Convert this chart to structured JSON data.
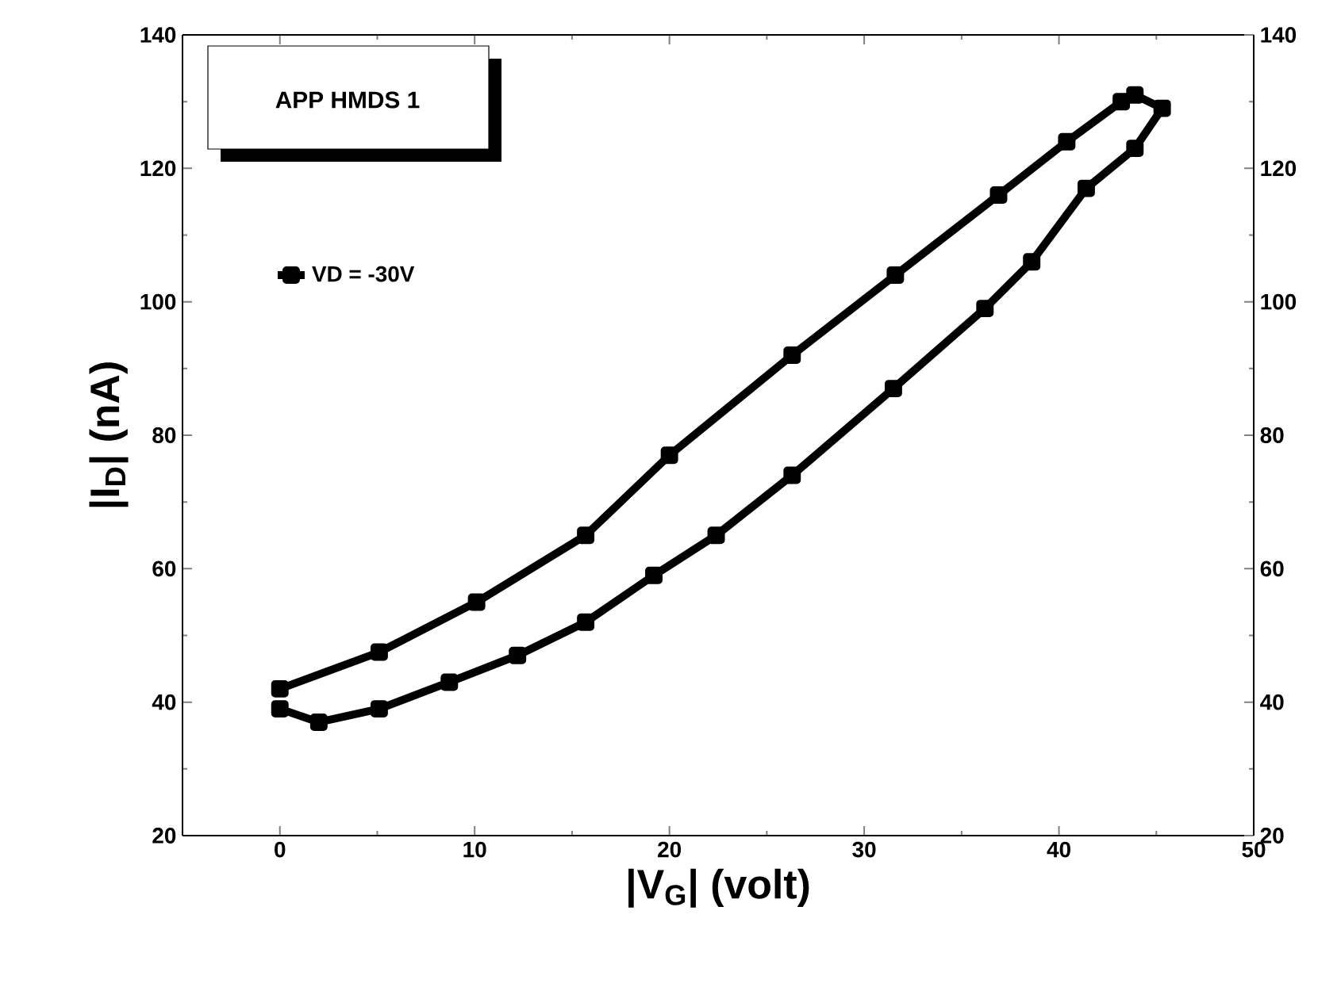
{
  "chart_data": {
    "type": "line",
    "xlabel": "|V$_{G}$| (volt)",
    "ylabel": "|I$_{D}$| (nA)",
    "annotations": [
      "APP HMDS 1"
    ],
    "series": [
      {
        "name": "VD = -30V",
        "color": "#000000",
        "x": [
          0,
          5.1,
          10.1,
          15.7,
          20,
          26.3,
          31.6,
          36.9,
          40.4,
          43.2,
          43.9,
          45.3,
          43.9,
          41.4,
          38.6,
          36.2,
          31.5,
          26.3,
          22.4,
          19.2,
          15.7,
          12.2,
          8.7,
          5.1,
          2,
          0
        ],
        "values": [
          42,
          47.5,
          55,
          65,
          77,
          92,
          104,
          116,
          124,
          130,
          131,
          129,
          123,
          117,
          106,
          99,
          87,
          74,
          65,
          59,
          52,
          47,
          43,
          39,
          37,
          39
        ]
      }
    ],
    "xlim": [
      -5,
      50
    ],
    "xticks": [
      0,
      10,
      20,
      30,
      40,
      50
    ],
    "ylim": [
      20,
      140
    ],
    "yticks": [
      20,
      40,
      60,
      80,
      100,
      120,
      140
    ],
    "y2lim": [
      20,
      140
    ],
    "y2ticks": [
      20,
      40,
      60,
      80,
      100,
      120,
      140
    ],
    "grid": false,
    "legend": "top left",
    "marker": "square",
    "line_style": "solid"
  }
}
